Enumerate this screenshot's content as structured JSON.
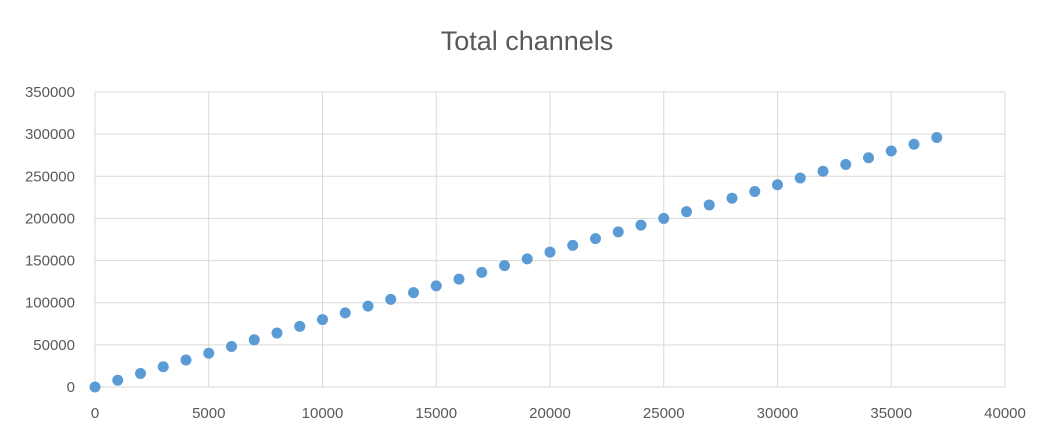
{
  "chart_data": {
    "type": "scatter",
    "title": "Total channels",
    "xlabel": "",
    "ylabel": "",
    "xlim": [
      0,
      40000
    ],
    "ylim": [
      0,
      350000
    ],
    "x_ticks": [
      0,
      5000,
      10000,
      15000,
      20000,
      25000,
      30000,
      35000,
      40000
    ],
    "y_ticks": [
      0,
      50000,
      100000,
      150000,
      200000,
      250000,
      300000,
      350000
    ],
    "grid": true,
    "legend": "none",
    "marker_color": "#5B9BD5",
    "series": [
      {
        "points": [
          [
            0,
            0
          ],
          [
            1000,
            8000
          ],
          [
            2000,
            16000
          ],
          [
            3000,
            24000
          ],
          [
            4000,
            32000
          ],
          [
            5000,
            40000
          ],
          [
            6000,
            48000
          ],
          [
            7000,
            56000
          ],
          [
            8000,
            64000
          ],
          [
            9000,
            72000
          ],
          [
            10000,
            80000
          ],
          [
            11000,
            88000
          ],
          [
            12000,
            96000
          ],
          [
            13000,
            104000
          ],
          [
            14000,
            112000
          ],
          [
            15000,
            120000
          ],
          [
            16000,
            128000
          ],
          [
            17000,
            136000
          ],
          [
            18000,
            144000
          ],
          [
            19000,
            152000
          ],
          [
            20000,
            160000
          ],
          [
            21000,
            168000
          ],
          [
            22000,
            176000
          ],
          [
            23000,
            184000
          ],
          [
            24000,
            192000
          ],
          [
            25000,
            200000
          ],
          [
            26000,
            208000
          ],
          [
            27000,
            216000
          ],
          [
            28000,
            224000
          ],
          [
            29000,
            232000
          ],
          [
            30000,
            240000
          ],
          [
            31000,
            248000
          ],
          [
            32000,
            256000
          ],
          [
            33000,
            264000
          ],
          [
            34000,
            272000
          ],
          [
            35000,
            280000
          ],
          [
            36000,
            288000
          ],
          [
            37000,
            296000
          ]
        ]
      }
    ]
  }
}
